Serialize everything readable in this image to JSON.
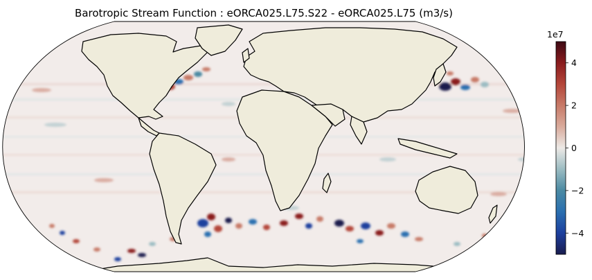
{
  "figure": {
    "title": "Barotropic Stream Function : eORCA025.L75.S22 - eORCA025.L75 (m3/s)",
    "projection": "Robinson (global)"
  },
  "colors": {
    "land": "#efecdb",
    "coastline": "#000000",
    "ocean_neutral": "#f2ecea",
    "negative_extreme": "#1a1c4e",
    "positive_extreme": "#3d0a14"
  },
  "colorbar": {
    "exponent_label": "1e7",
    "min": -5,
    "max": 5,
    "ticks": [
      {
        "value": 4,
        "label": "4"
      },
      {
        "value": 2,
        "label": "2"
      },
      {
        "value": 0,
        "label": "0"
      },
      {
        "value": -2,
        "label": "−2"
      },
      {
        "value": -4,
        "label": "−4"
      }
    ],
    "stops": [
      {
        "value": -5,
        "color": "#1a1c4e"
      },
      {
        "value": -4,
        "color": "#1c3f9e"
      },
      {
        "value": -3,
        "color": "#2a6fb0"
      },
      {
        "value": -2,
        "color": "#4b8aa3"
      },
      {
        "value": -1,
        "color": "#9bbcc2"
      },
      {
        "value": 0,
        "color": "#ece9e6"
      },
      {
        "value": 1,
        "color": "#d9ab9c"
      },
      {
        "value": 2,
        "color": "#c77a68"
      },
      {
        "value": 3,
        "color": "#b4463a"
      },
      {
        "value": 4,
        "color": "#8a1c1e"
      },
      {
        "value": 5,
        "color": "#3d0a14"
      }
    ]
  }
}
